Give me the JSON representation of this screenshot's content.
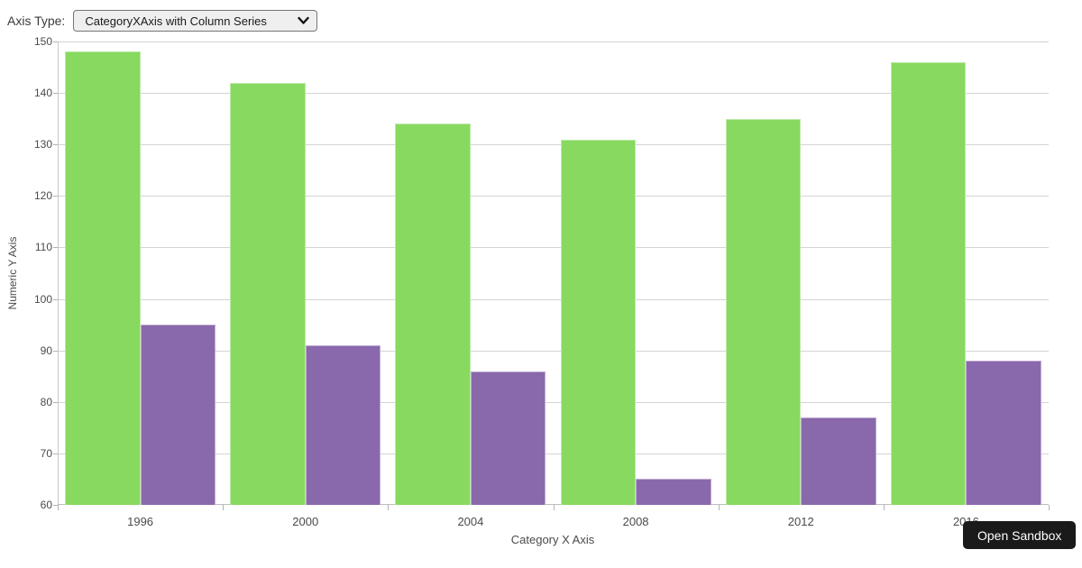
{
  "controls": {
    "axis_type_label": "Axis Type:",
    "axis_type_value": "CategoryXAxis with Column Series"
  },
  "chart_data": {
    "type": "bar",
    "title": "",
    "categories": [
      "1996",
      "2000",
      "2004",
      "2008",
      "2012",
      "2016"
    ],
    "series": [
      {
        "color": "#87D95F",
        "values": [
          148,
          142,
          134,
          131,
          135,
          146
        ]
      },
      {
        "color": "#8A68AC",
        "values": [
          95,
          91,
          86,
          65,
          77,
          88
        ]
      }
    ],
    "xlabel": "Category X Axis",
    "ylabel": "Numeric Y Axis",
    "ylim": [
      60,
      150
    ],
    "yticks": [
      60,
      70,
      80,
      90,
      100,
      110,
      120,
      130,
      140,
      150
    ],
    "grid": true,
    "legend": "none"
  },
  "footer": {
    "open_sandbox_label": "Open Sandbox"
  },
  "colors": {
    "grid": "#d4d4d4",
    "axis_line": "#c9c9c9",
    "axis_text": "#4b4b4b",
    "green_series": "#87D95F",
    "purple_series": "#8A68AC",
    "select_bg": "#efefef",
    "select_border": "#767676",
    "button_bg": "#1a1a1a",
    "button_text": "#ffffff"
  }
}
